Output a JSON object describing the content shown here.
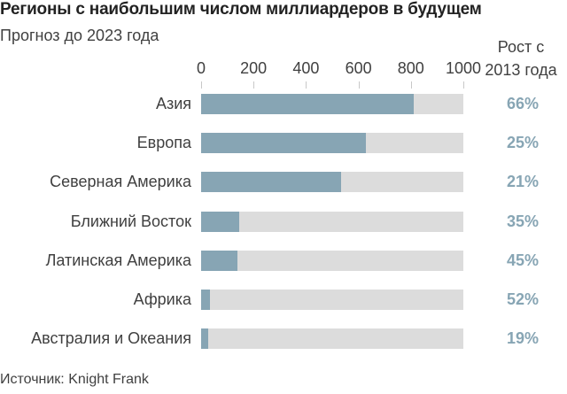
{
  "title": "Регионы с наибольшим числом миллиардеров в будущем",
  "subtitle": "Прогноз до 2023 года",
  "growth_header_line1": "Рост с",
  "growth_header_line2": "2013 года",
  "source": "Источник: Knight Frank",
  "colors": {
    "bar": "#87a5b4",
    "bar_background": "#dcdcdc",
    "growth_text": "#87a5b4"
  },
  "chart_data": {
    "type": "bar",
    "orientation": "horizontal",
    "title": "Регионы с наибольшим числом миллиардеров в будущем",
    "subtitle": "Прогноз до 2023 года",
    "xlabel": "",
    "ylabel": "",
    "xlim": [
      0,
      1000
    ],
    "ticks": [
      "0",
      "200",
      "400",
      "600",
      "800",
      "1000"
    ],
    "tick_values": [
      0,
      200,
      400,
      600,
      800,
      1000
    ],
    "categories": [
      "Азия",
      "Европа",
      "Северная Америка",
      "Ближний Восток",
      "Латинская Америка",
      "Африка",
      "Австралия и Океания"
    ],
    "values": [
      811,
      628,
      534,
      145,
      138,
      33,
      27
    ],
    "growth_label": "Рост с 2013 года",
    "growth": [
      "66%",
      "25%",
      "21%",
      "35%",
      "45%",
      "52%",
      "19%"
    ],
    "grid": false,
    "legend": "none",
    "source": "Источник: Knight Frank"
  }
}
